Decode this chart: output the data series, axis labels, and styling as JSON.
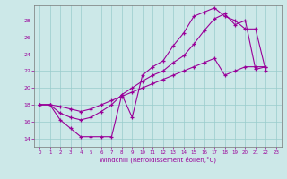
{
  "xlabel": "Windchill (Refroidissement éolien,°C)",
  "bg_color": "#cce8e8",
  "grid_color": "#99cccc",
  "line_color": "#990099",
  "xlim": [
    -0.5,
    23.5
  ],
  "ylim": [
    13.0,
    29.8
  ],
  "xticks": [
    0,
    1,
    2,
    3,
    4,
    5,
    6,
    7,
    8,
    9,
    10,
    11,
    12,
    13,
    14,
    15,
    16,
    17,
    18,
    19,
    20,
    21,
    22,
    23
  ],
  "yticks": [
    14,
    16,
    18,
    20,
    22,
    24,
    26,
    28
  ],
  "curve1_x": [
    0,
    1,
    2,
    3,
    4,
    5,
    6,
    7,
    8,
    9,
    10,
    11,
    12,
    13,
    14,
    15,
    16,
    17,
    18,
    19,
    20,
    21,
    22
  ],
  "curve1_y": [
    18.0,
    18.0,
    16.2,
    15.2,
    14.2,
    14.2,
    14.2,
    14.2,
    19.2,
    16.5,
    21.5,
    22.5,
    23.2,
    25.0,
    26.5,
    28.5,
    29.0,
    29.5,
    28.5,
    28.0,
    27.0,
    27.0,
    22.0
  ],
  "curve2_x": [
    0,
    1,
    2,
    3,
    4,
    5,
    6,
    7,
    8,
    9,
    10,
    11,
    12,
    13,
    14,
    15,
    16,
    17,
    18,
    19,
    20,
    21,
    22
  ],
  "curve2_y": [
    18.0,
    18.0,
    17.0,
    16.5,
    16.2,
    16.5,
    17.2,
    18.0,
    19.2,
    20.0,
    20.8,
    21.5,
    22.0,
    23.0,
    23.8,
    25.2,
    26.8,
    28.2,
    28.8,
    27.5,
    28.0,
    22.2,
    22.5
  ],
  "curve3_x": [
    0,
    1,
    2,
    3,
    4,
    5,
    6,
    7,
    8,
    9,
    10,
    11,
    12,
    13,
    14,
    15,
    16,
    17,
    18,
    19,
    20,
    21,
    22
  ],
  "curve3_y": [
    18.0,
    18.0,
    17.8,
    17.5,
    17.2,
    17.5,
    18.0,
    18.5,
    19.0,
    19.5,
    20.0,
    20.5,
    21.0,
    21.5,
    22.0,
    22.5,
    23.0,
    23.5,
    21.5,
    22.0,
    22.5,
    22.5,
    22.5
  ]
}
